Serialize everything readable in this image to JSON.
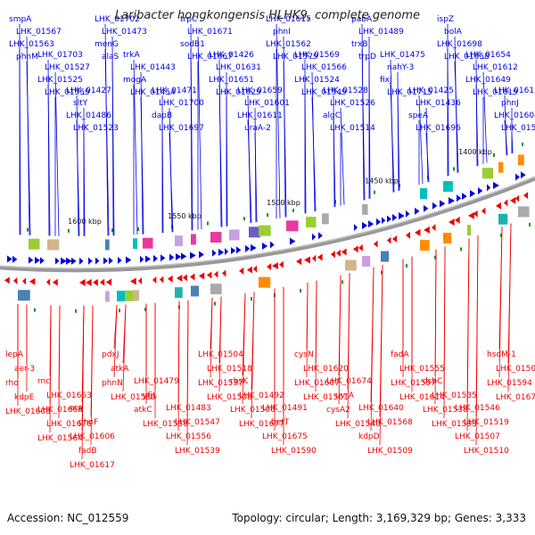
{
  "title": "Laribacter hongkongensis HLHK9, complete genome",
  "accession": "Accession: NC_012559",
  "topology": "Topology: circular; Length: 3,169,329 bp; Genes: 3,333",
  "colors": {
    "forward": "#0000dd",
    "reverse": "#ee0000",
    "backbone": "#888888",
    "marker": "#119911"
  },
  "ticks": [
    "1600 kbp",
    "1550 kbp",
    "1500 kbp",
    "1450 kbp",
    "1400 kbp"
  ],
  "top_labels": [
    "smpA",
    "LHK_01703",
    "LHK_01427",
    "LHK_01702",
    "trkA",
    "LHK_01471",
    "trpC",
    "LHK_01426",
    "LHK_01659",
    "LHK_01615",
    "LHK_01569",
    "LHK_01528",
    "pabA",
    "LHK_01475",
    "LHK_01425",
    "ispZ",
    "LHK_01654",
    "LHK_01613",
    "LHK_01567",
    "LHK_01527",
    "sltY",
    "LHK_01473",
    "LHK_01443",
    "LHK_01700",
    "LHK_01671",
    "LHK_01631",
    "LHK_01601",
    "phnI",
    "LHK_01566",
    "LHK_01526",
    "LHK_01489",
    "nahY-3",
    "LHK_01436",
    "bolA",
    "LHK_01612",
    "phnJ",
    "LHK_01563",
    "LHK_01525",
    "LHK_01486",
    "menG",
    "mogA",
    "dapB",
    "sodB1",
    "LHK_01651",
    "LHK_01611",
    "LHK_01562",
    "LHK_01524",
    "algC",
    "trxB",
    "fixJ",
    "speA",
    "LHK_01698",
    "LHK_01649",
    "LHK_01604",
    "phnM",
    "LHK_01559",
    "LHK_01523",
    "alaS",
    "LHK_01454",
    "LHK_01697",
    "LHK_01667",
    "LHK_01629",
    "uraA-2",
    "LHK_01579",
    "LHK_01549",
    "LHK_01514",
    "trpD",
    "LHK_01715",
    "LHK_01696",
    "LHK_01658",
    "LHK_01619",
    "LHK_01570"
  ],
  "bottom_labels": [
    "lepA",
    "rnc",
    "era",
    "pdxJ",
    "LHK_01479",
    "LHK_01483",
    "LHK_01504",
    "rbsK",
    "LHK_01491",
    "cysN",
    "LHK_01674",
    "LHK_01640",
    "fadA",
    "dsbC",
    "LHK_01546",
    "hsdM-1",
    "aer-3",
    "LHK_01663",
    "phnF",
    "atkA",
    "yfjL",
    "LHK_01547",
    "LHK_01518",
    "LHK_01492",
    "betT",
    "LHK_01620",
    "uvrA",
    "LHK_01568",
    "LHK_01555",
    "LHK_01535",
    "LHK_01519",
    "LHK_01505",
    "rho",
    "LHK_01668",
    "LHK_01606",
    "phnN",
    "atkC",
    "LHK_01556",
    "LHK_01537",
    "LHK_01506",
    "LHK_01675",
    "LHK_01607",
    "cysA2",
    "kdpD",
    "LHK_01557",
    "LHK_01538",
    "LHK_01507",
    "LHK_01594",
    "kdpE",
    "LHK_01676",
    "fadB",
    "LHK_01580",
    "LHK_01558",
    "LHK_01539",
    "LHK_01508",
    "LHK_01677",
    "LHK_01590",
    "LHK_01561",
    "LHK_01540",
    "LHK_01509",
    "LHK_01614",
    "LHK_01593",
    "LHK_01510",
    "LHK_01678",
    "LHK_01608",
    "LHK_01564",
    "LHK_01617"
  ]
}
